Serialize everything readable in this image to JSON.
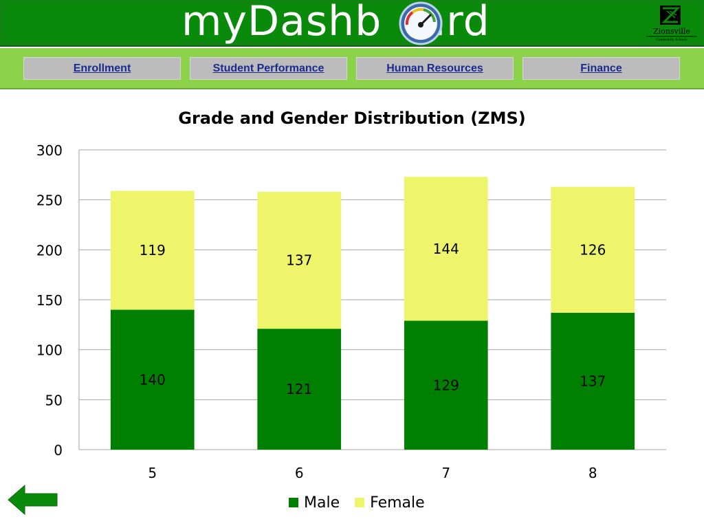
{
  "header": {
    "title": "myDashb●ard",
    "title_prefix": "myDashb",
    "title_suffix": "ard",
    "logo_text": "Zionsville",
    "logo_subtext": "Community Schools"
  },
  "nav": {
    "tabs": [
      {
        "label": "Enrollment"
      },
      {
        "label": "Student Performance"
      },
      {
        "label": "Human Resources"
      },
      {
        "label": "Finance"
      }
    ]
  },
  "colors": {
    "header_green": "#0a8a0a",
    "nav_green": "#8cd24a",
    "male": "#008000",
    "female": "#eef56a"
  },
  "icons": {
    "back": "left-arrow-icon",
    "gauge": "speedometer-icon"
  },
  "chart_data": {
    "type": "bar",
    "stacked": true,
    "title": "Grade and Gender Distribution (ZMS)",
    "xlabel": "",
    "ylabel": "",
    "categories": [
      "5",
      "6",
      "7",
      "8"
    ],
    "series": [
      {
        "name": "Male",
        "color": "#008000",
        "values": [
          140,
          121,
          129,
          137
        ]
      },
      {
        "name": "Female",
        "color": "#eef56a",
        "values": [
          119,
          137,
          144,
          126
        ]
      }
    ],
    "ylim": [
      0,
      300
    ],
    "yticks": [
      0,
      50,
      100,
      150,
      200,
      250,
      300
    ],
    "grid": true,
    "legend_position": "bottom"
  }
}
